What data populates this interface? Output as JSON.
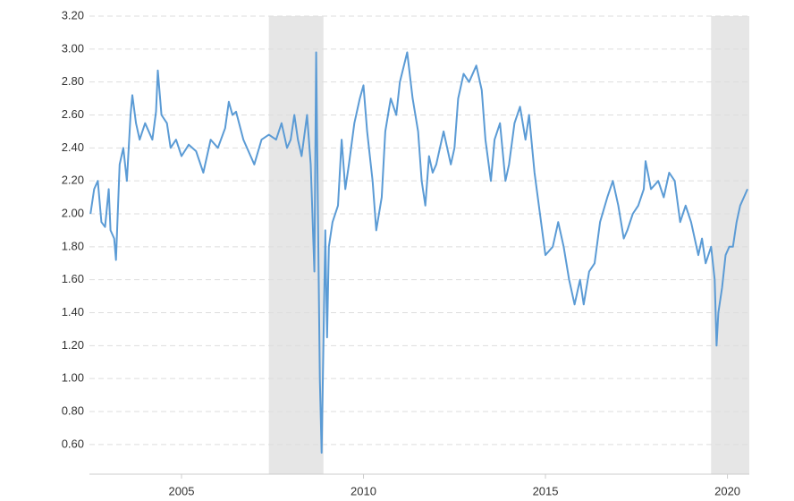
{
  "chart_data": {
    "type": "line",
    "xlim": [
      2002.47,
      2020.6
    ],
    "xticks": [
      2005,
      2010,
      2015,
      2020
    ],
    "ylim": [
      0.42,
      3.2
    ],
    "yticks": [
      {
        "value": 0.6,
        "label": "0.60"
      },
      {
        "value": 0.8,
        "label": "0.80"
      },
      {
        "value": 1.0,
        "label": "1.00"
      },
      {
        "value": 1.2,
        "label": "1.20"
      },
      {
        "value": 1.4,
        "label": "1.40"
      },
      {
        "value": 1.6,
        "label": "1.60"
      },
      {
        "value": 1.8,
        "label": "1.80"
      },
      {
        "value": 2.0,
        "label": "2.00"
      },
      {
        "value": 2.2,
        "label": "2.20"
      },
      {
        "value": 2.4,
        "label": "2.40"
      },
      {
        "value": 2.6,
        "label": "2.60"
      },
      {
        "value": 2.8,
        "label": "2.80"
      },
      {
        "value": 3.0,
        "label": "3.00"
      },
      {
        "value": 3.2,
        "label": "3.20"
      }
    ],
    "grid": true,
    "shaded_regions": [
      [
        2007.4,
        2008.9
      ],
      [
        2019.55,
        2020.6
      ]
    ],
    "shade_color": "#e6e6e6",
    "series": [
      {
        "color": "#5b9bd5",
        "x": [
          2002.5,
          2002.6,
          2002.7,
          2002.8,
          2002.9,
          2003.0,
          2003.05,
          2003.15,
          2003.2,
          2003.3,
          2003.4,
          2003.5,
          2003.6,
          2003.65,
          2003.75,
          2003.85,
          2004.0,
          2004.2,
          2004.3,
          2004.35,
          2004.45,
          2004.6,
          2004.7,
          2004.85,
          2005.0,
          2005.2,
          2005.4,
          2005.6,
          2005.8,
          2006.0,
          2006.2,
          2006.3,
          2006.4,
          2006.5,
          2006.7,
          2006.9,
          2007.0,
          2007.2,
          2007.4,
          2007.6,
          2007.75,
          2007.9,
          2008.0,
          2008.1,
          2008.2,
          2008.3,
          2008.45,
          2008.55,
          2008.65,
          2008.7,
          2008.75,
          2008.8,
          2008.85,
          2008.9,
          2008.95,
          2009.0,
          2009.05,
          2009.15,
          2009.3,
          2009.4,
          2009.5,
          2009.6,
          2009.75,
          2009.9,
          2010.0,
          2010.1,
          2010.25,
          2010.35,
          2010.5,
          2010.6,
          2010.75,
          2010.9,
          2011.0,
          2011.2,
          2011.35,
          2011.5,
          2011.6,
          2011.7,
          2011.8,
          2011.9,
          2012.0,
          2012.2,
          2012.4,
          2012.5,
          2012.6,
          2012.75,
          2012.9,
          2013.1,
          2013.25,
          2013.35,
          2013.5,
          2013.6,
          2013.75,
          2013.9,
          2014.0,
          2014.15,
          2014.3,
          2014.45,
          2014.55,
          2014.7,
          2014.85,
          2015.0,
          2015.2,
          2015.35,
          2015.5,
          2015.65,
          2015.8,
          2015.95,
          2016.05,
          2016.2,
          2016.35,
          2016.5,
          2016.7,
          2016.85,
          2017.0,
          2017.15,
          2017.25,
          2017.4,
          2017.55,
          2017.7,
          2017.75,
          2017.9,
          2018.1,
          2018.25,
          2018.4,
          2018.55,
          2018.7,
          2018.85,
          2019.0,
          2019.2,
          2019.3,
          2019.4,
          2019.55,
          2019.65,
          2019.7,
          2019.75,
          2019.85,
          2019.95,
          2020.05,
          2020.15,
          2020.25,
          2020.35,
          2020.45,
          2020.55
        ],
        "values": [
          2.0,
          2.15,
          2.2,
          1.95,
          1.92,
          2.15,
          1.9,
          1.85,
          1.72,
          2.3,
          2.4,
          2.2,
          2.6,
          2.72,
          2.55,
          2.45,
          2.55,
          2.45,
          2.62,
          2.87,
          2.6,
          2.55,
          2.4,
          2.45,
          2.35,
          2.42,
          2.38,
          2.25,
          2.45,
          2.4,
          2.52,
          2.68,
          2.6,
          2.62,
          2.45,
          2.35,
          2.3,
          2.45,
          2.48,
          2.45,
          2.55,
          2.4,
          2.45,
          2.6,
          2.45,
          2.35,
          2.6,
          2.3,
          1.65,
          2.98,
          2.0,
          1.0,
          0.55,
          1.2,
          1.9,
          1.25,
          1.8,
          1.95,
          2.05,
          2.45,
          2.15,
          2.3,
          2.55,
          2.7,
          2.78,
          2.5,
          2.2,
          1.9,
          2.1,
          2.5,
          2.7,
          2.6,
          2.8,
          2.98,
          2.7,
          2.5,
          2.2,
          2.05,
          2.35,
          2.25,
          2.3,
          2.5,
          2.3,
          2.4,
          2.7,
          2.85,
          2.8,
          2.9,
          2.75,
          2.45,
          2.2,
          2.45,
          2.55,
          2.2,
          2.3,
          2.55,
          2.65,
          2.45,
          2.6,
          2.25,
          2.0,
          1.75,
          1.8,
          1.95,
          1.8,
          1.6,
          1.45,
          1.6,
          1.45,
          1.65,
          1.7,
          1.95,
          2.1,
          2.2,
          2.05,
          1.85,
          1.9,
          2.0,
          2.05,
          2.15,
          2.32,
          2.15,
          2.2,
          2.1,
          2.25,
          2.2,
          1.95,
          2.05,
          1.95,
          1.75,
          1.85,
          1.7,
          1.8,
          1.6,
          1.2,
          1.4,
          1.55,
          1.75,
          1.8,
          1.8,
          1.95,
          2.05,
          2.1,
          2.15
        ]
      }
    ]
  }
}
